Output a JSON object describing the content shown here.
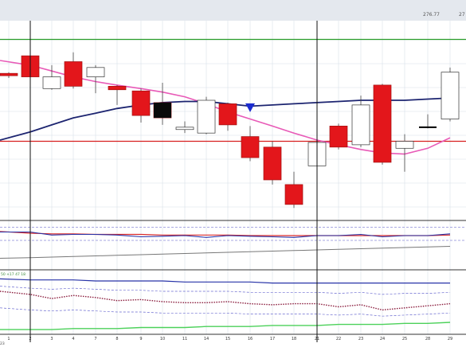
{
  "colors": {
    "bull_candle_fill": "#ffffff",
    "bull_candle_outline": "#333333",
    "bear_candle_fill": "#e3161b",
    "doji_color": "#000000",
    "sma_fast": "#e85ab7",
    "sma_slow": "#1c2470",
    "hline_green": "#2a9d2a",
    "hline_red": "#d71f1f",
    "grid": "#d8dfe8",
    "topbar": "#e4e8ee",
    "osc_red": "#d92b2b",
    "osc_blue": "#2733a8",
    "vol_green": "#4cd15a",
    "marker": "#1a2bd0"
  },
  "header": {
    "price_a": "276.77",
    "price_b": "27"
  },
  "panel2_readout": "50 +17 47 18",
  "x_axis": {
    "year_label": "23",
    "days": [
      "1",
      "2",
      "3",
      "4",
      "7",
      "8",
      "9",
      "10",
      "11",
      "14",
      "15",
      "16",
      "17",
      "18",
      "21",
      "22",
      "23",
      "24",
      "25",
      "28",
      "29"
    ]
  },
  "chart_data": {
    "type": "candlestick",
    "title": "",
    "x": [
      "1",
      "2",
      "3",
      "4",
      "7",
      "8",
      "9",
      "10",
      "11",
      "14",
      "15",
      "16",
      "17",
      "18",
      "21",
      "22",
      "23",
      "24",
      "25",
      "28",
      "29"
    ],
    "candles": [
      {
        "x": "1",
        "open": 267.5,
        "close": 266.5,
        "high": 268.0,
        "low": 265.5
      },
      {
        "x": "2",
        "open": 275.0,
        "close": 266.0,
        "high": 275.5,
        "low": 265.0
      },
      {
        "x": "3",
        "open": 261.0,
        "close": 266.0,
        "high": 271.0,
        "low": 260.5
      },
      {
        "x": "4",
        "open": 272.5,
        "close": 262.0,
        "high": 276.5,
        "low": 261.0
      },
      {
        "x": "7",
        "open": 266.0,
        "close": 270.0,
        "high": 271.0,
        "low": 259.0
      },
      {
        "x": "8",
        "open": 262.0,
        "close": 260.5,
        "high": 262.5,
        "low": 254.0
      },
      {
        "x": "9",
        "open": 260.0,
        "close": 249.5,
        "high": 261.0,
        "low": 246.5
      },
      {
        "x": "10",
        "open": 255.0,
        "close": 248.5,
        "high": 263.5,
        "low": 245.5
      },
      {
        "x": "11",
        "open": 243.5,
        "close": 244.5,
        "high": 247.0,
        "low": 242.0
      },
      {
        "x": "14",
        "open": 242.0,
        "close": 256.0,
        "high": 257.5,
        "low": 241.5
      },
      {
        "x": "15",
        "open": 254.5,
        "close": 245.5,
        "high": 255.0,
        "low": 243.0
      },
      {
        "x": "16",
        "open": 240.5,
        "close": 231.5,
        "high": 245.0,
        "low": 230.0
      },
      {
        "x": "17",
        "open": 236.0,
        "close": 222.0,
        "high": 238.5,
        "low": 220.0
      },
      {
        "x": "18",
        "open": 220.0,
        "close": 211.5,
        "high": 225.5,
        "low": 210.0
      },
      {
        "x": "21",
        "open": 228.0,
        "close": 238.0,
        "high": 239.0,
        "low": 227.5
      },
      {
        "x": "22",
        "open": 245.0,
        "close": 236.0,
        "high": 246.0,
        "low": 235.0
      },
      {
        "x": "23",
        "open": 237.0,
        "close": 254.0,
        "high": 258.0,
        "low": 236.0
      },
      {
        "x": "24",
        "open": 262.5,
        "close": 229.5,
        "high": 263.0,
        "low": 228.5
      },
      {
        "x": "25",
        "open": 235.5,
        "close": 238.5,
        "high": 241.5,
        "low": 225.5
      },
      {
        "x": "28",
        "open": 244.5,
        "close": 244.5,
        "high": 250.0,
        "low": 244.0
      },
      {
        "x": "29",
        "open": 248.0,
        "close": 268.0,
        "high": 270.0,
        "low": 247.0
      }
    ],
    "sma_fast": [
      273.0,
      271.0,
      268.5,
      266.0,
      264.0,
      262.5,
      261.0,
      259.5,
      257.5,
      254.5,
      251.0,
      248.0,
      245.0,
      242.0,
      239.0,
      237.0,
      235.0,
      233.5,
      233.0,
      235.5,
      240.0
    ],
    "sma_slow": [
      239.0,
      242.5,
      245.5,
      248.5,
      250.5,
      252.5,
      254.0,
      255.0,
      255.5,
      255.5,
      254.5,
      253.5,
      254.0,
      254.5,
      255.0,
      255.5,
      256.0,
      256.0,
      256.0,
      256.5,
      257.0
    ],
    "hlines": [
      {
        "value": 282.0,
        "color": "green"
      },
      {
        "value": 238.5,
        "color": "red"
      }
    ],
    "vlines_at": [
      "2",
      "21"
    ],
    "signal_marker": {
      "x": "16",
      "value": 253.0,
      "shape": "down-triangle"
    },
    "ylim": [
      205,
      290
    ],
    "grid": true,
    "oscillator_1": {
      "red_line": [
        63,
        60,
        59,
        59,
        58,
        58,
        58,
        57,
        57,
        57,
        57,
        56,
        56,
        56,
        56,
        56,
        56,
        56,
        56,
        56,
        57
      ],
      "blue_line": [
        62,
        62,
        57,
        58,
        58,
        57,
        54,
        55,
        56,
        53,
        56,
        55,
        54,
        53,
        56,
        56,
        58,
        54,
        56,
        56,
        59
      ],
      "band_upper": 70,
      "band_lower": 48,
      "gray_trend": [
        18,
        19,
        20,
        21,
        22,
        23,
        24,
        25,
        26,
        27,
        28,
        29,
        30,
        31,
        32,
        33,
        34,
        35,
        36,
        37,
        38
      ],
      "ylim": [
        0,
        80
      ]
    },
    "oscillator_2": {
      "blue_line": [
        52,
        51,
        51,
        51,
        50,
        50,
        50,
        50,
        49,
        49,
        49,
        49,
        48,
        48,
        48,
        48,
        48,
        48,
        48,
        48,
        48
      ],
      "dotted_line": [
        40,
        37,
        33,
        36,
        34,
        31,
        32,
        30,
        29,
        29,
        30,
        28,
        27,
        28,
        28,
        25,
        27,
        22,
        24,
        26,
        28
      ],
      "dashed_upper": [
        45,
        43,
        42,
        43,
        42,
        41,
        41,
        40,
        40,
        40,
        40,
        39,
        39,
        39,
        39,
        38,
        39,
        37,
        38,
        38,
        39
      ],
      "dashed_lower": [
        24,
        22,
        21,
        22,
        21,
        20,
        20,
        19,
        19,
        19,
        19,
        18,
        18,
        18,
        18,
        17,
        18,
        16,
        17,
        18,
        19
      ],
      "green_line": [
        3,
        3,
        3,
        4,
        4,
        4,
        5,
        5,
        5,
        6,
        6,
        6,
        7,
        7,
        7,
        8,
        8,
        8,
        9,
        9,
        10
      ],
      "ylim": [
        0,
        60
      ]
    }
  }
}
